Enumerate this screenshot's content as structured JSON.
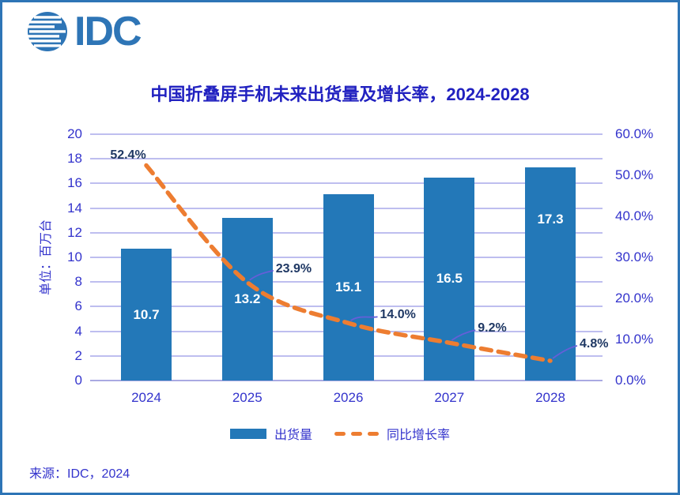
{
  "logo": {
    "text": "IDC"
  },
  "header": {
    "title": "中国折叠屏手机未来出货量及增长率，2024-2028"
  },
  "source": "来源：IDC，2024",
  "colors": {
    "brand_blue": "#2E75B6",
    "bar": "#2378B8",
    "line": "#ED7D31",
    "title_text": "#2121C0",
    "axis_text": "#3333CC",
    "growth_label": "#1F3864",
    "bar_label": "#FFFFFF",
    "gridline": "#BEBEEF",
    "leader": "#655FD8"
  },
  "chart_data": {
    "type": "bar",
    "title": "中国折叠屏手机未来出货量及增长率，2024-2028",
    "categories": [
      "2024",
      "2025",
      "2026",
      "2027",
      "2028"
    ],
    "series": [
      {
        "name": "出货量",
        "type": "bar",
        "axis": "left",
        "values": [
          10.7,
          13.2,
          15.1,
          16.5,
          17.3
        ],
        "labels": [
          "10.7",
          "13.2",
          "15.1",
          "16.5",
          "17.3"
        ]
      },
      {
        "name": "同比增长率",
        "type": "line",
        "style": "dashed",
        "axis": "right",
        "values": [
          52.4,
          23.9,
          14.0,
          9.2,
          4.8
        ],
        "labels": [
          "52.4%",
          "23.9%",
          "14.0%",
          "9.2%",
          "4.8%"
        ]
      }
    ],
    "left_axis": {
      "title": "单位：百万台",
      "min": 0,
      "max": 20,
      "step": 2,
      "ticks": [
        "0",
        "2",
        "4",
        "6",
        "8",
        "10",
        "12",
        "14",
        "16",
        "18",
        "20"
      ]
    },
    "right_axis": {
      "min": 0,
      "max": 60,
      "step": 10,
      "ticks": [
        "0.0%",
        "10.0%",
        "20.0%",
        "30.0%",
        "40.0%",
        "50.0%",
        "60.0%"
      ]
    },
    "grid": true,
    "legend_position": "bottom"
  }
}
